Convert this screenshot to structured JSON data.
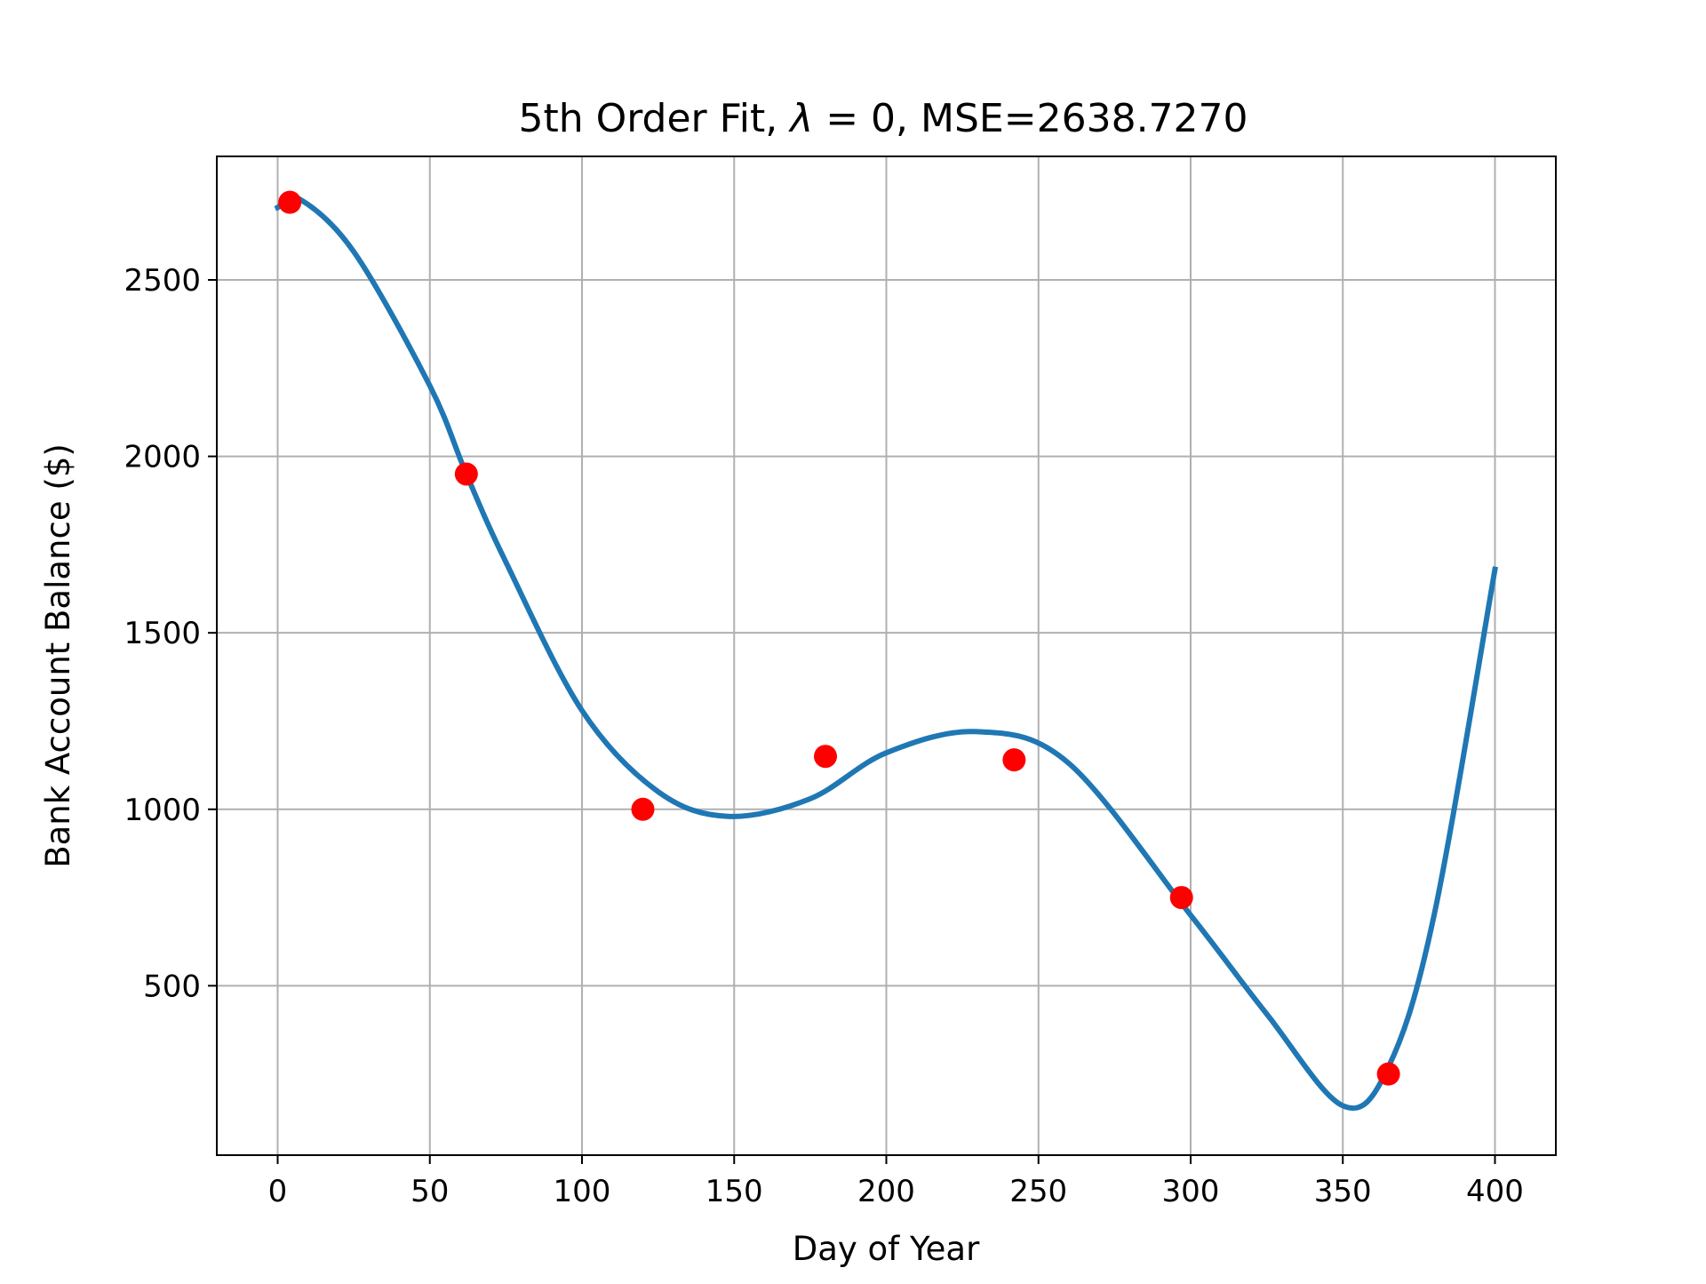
{
  "chart_data": {
    "type": "scatter",
    "title_parts": {
      "prefix": "5th Order Fit, ",
      "lambda_symbol": "λ",
      "suffix": " = 0, MSE=2638.7270"
    },
    "xlabel": "Day of Year",
    "ylabel": "Bank Account Balance ($)",
    "xlim": [
      -20,
      420
    ],
    "ylim": [
      20,
      2850
    ],
    "xticks": [
      0,
      50,
      100,
      150,
      200,
      250,
      300,
      350,
      400
    ],
    "yticks": [
      500,
      1000,
      1500,
      2000,
      2500
    ],
    "grid": true,
    "colors": {
      "points": "#ff0000",
      "fit_line": "#1f77b4",
      "grid": "#b0b0b0"
    },
    "series": [
      {
        "kind": "points",
        "x": [
          4,
          62,
          120,
          180,
          242,
          297,
          365
        ],
        "y": [
          2720,
          1950,
          1000,
          1150,
          1140,
          750,
          250
        ]
      },
      {
        "kind": "line",
        "x": [
          0,
          7,
          25,
          50,
          62,
          75,
          100,
          125,
          148,
          175,
          200,
          230,
          260,
          300,
          325,
          350,
          365,
          380,
          400
        ],
        "y": [
          2705,
          2730,
          2580,
          2200,
          1950,
          1700,
          1280,
          1050,
          980,
          1030,
          1160,
          1220,
          1130,
          700,
          420,
          160,
          270,
          700,
          1680
        ]
      }
    ]
  }
}
